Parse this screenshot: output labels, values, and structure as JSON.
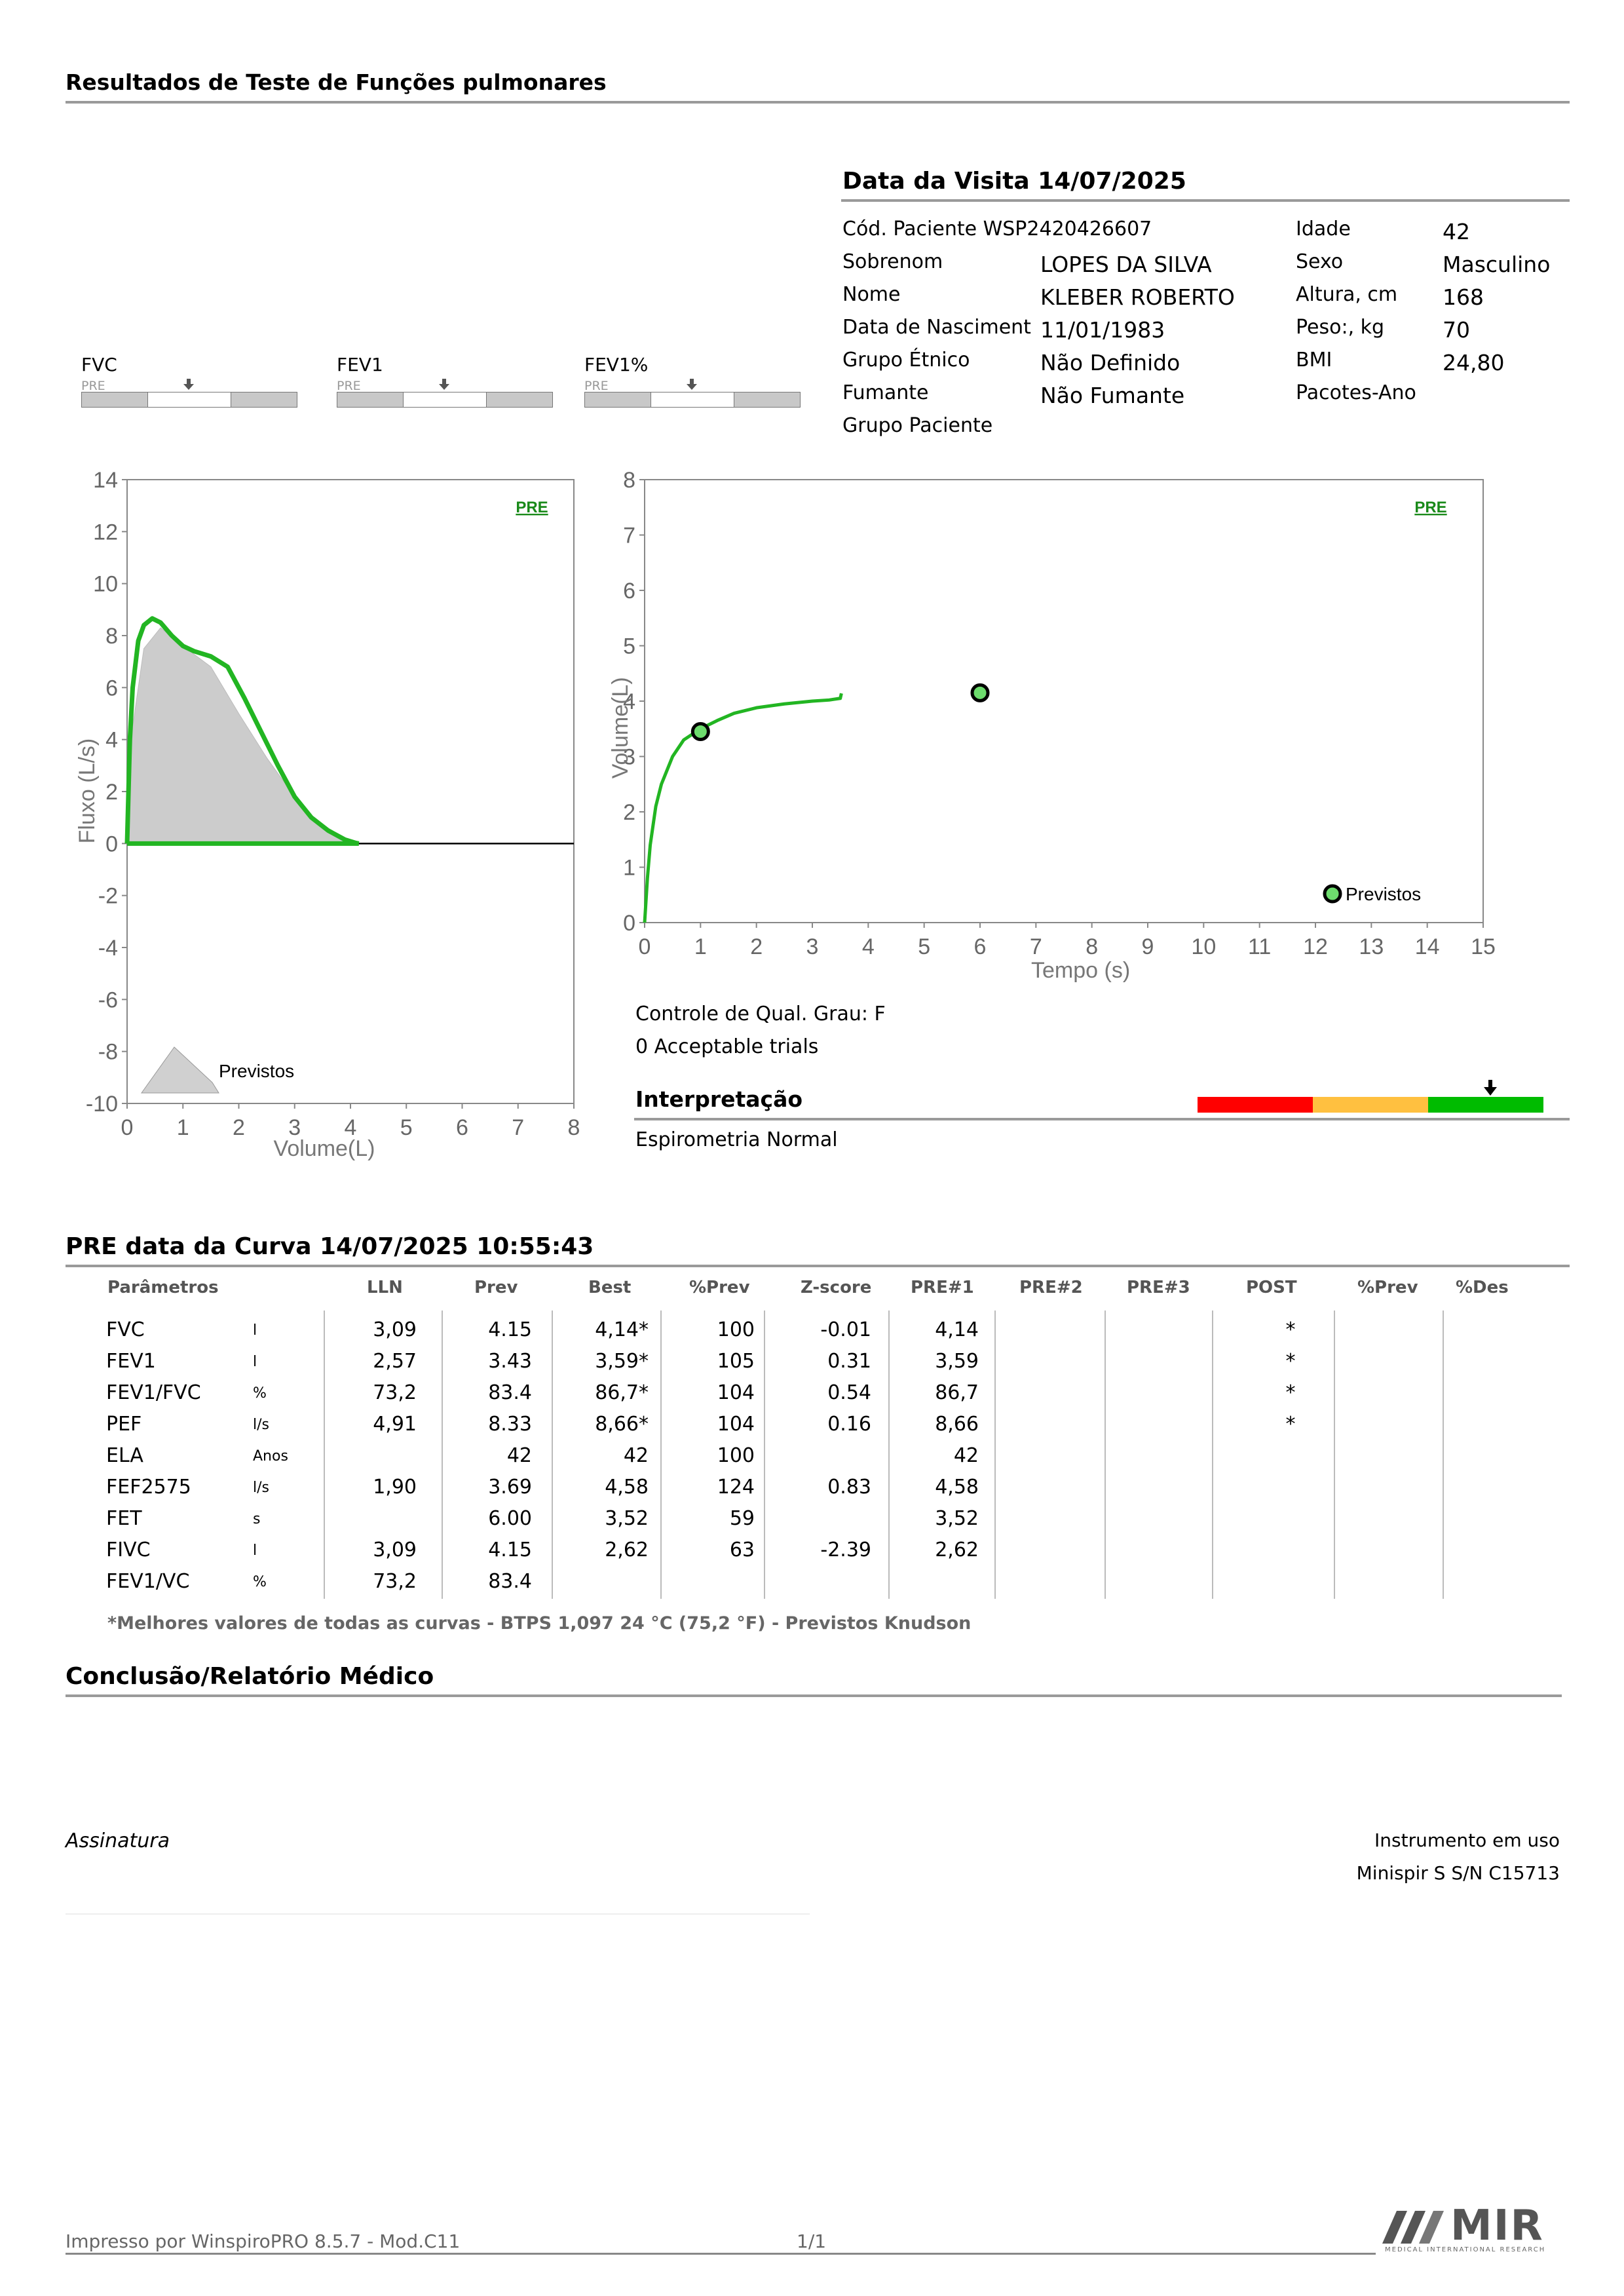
{
  "header": {
    "title": "Resultados de Teste de Funções pulmonares"
  },
  "visit": {
    "title": "Data da Visita 14/07/2025",
    "patient_code": "Cód. Paciente WSP2420426607",
    "fields_left": [
      {
        "label": "Sobrenom",
        "value": "LOPES DA SILVA"
      },
      {
        "label": "Nome",
        "value": "KLEBER ROBERTO"
      },
      {
        "label": "Data de Nasciment",
        "value": "11/01/1983"
      },
      {
        "label": "Grupo Étnico",
        "value": "Não Definido"
      },
      {
        "label": "Fumante",
        "value": "Não Fumante"
      },
      {
        "label": "Grupo Paciente",
        "value": ""
      }
    ],
    "fields_right": [
      {
        "label": "Idade",
        "value": "42"
      },
      {
        "label": "Sexo",
        "value": "Masculino"
      },
      {
        "label": "Altura, cm",
        "value": "168"
      },
      {
        "label": "Peso:, kg",
        "value": "70"
      },
      {
        "label": "BMI",
        "value": "24,80"
      },
      {
        "label": "Pacotes-Ano",
        "value": ""
      }
    ]
  },
  "indicators": [
    {
      "name": "FVC",
      "tag": "PRE"
    },
    {
      "name": "FEV1",
      "tag": "PRE"
    },
    {
      "name": "FEV1%",
      "tag": "PRE"
    }
  ],
  "flow_volume_chart": {
    "type": "area",
    "tag": "PRE",
    "ylabel": "Fluxo (L/s)",
    "xlabel": "Volume(L)",
    "ylim": [
      -10,
      14
    ],
    "xlim": [
      0,
      8
    ],
    "yticks": [
      "14",
      "12",
      "10",
      "8",
      "6",
      "4",
      "2",
      "0",
      "-2",
      "-4",
      "-6",
      "-8",
      "-10"
    ],
    "xticks": [
      "0",
      "1",
      "2",
      "3",
      "4",
      "5",
      "6",
      "7",
      "8"
    ],
    "legend": "Previstos",
    "predicted_curve": {
      "x": [
        0,
        0.1,
        0.3,
        0.6,
        1.0,
        1.5,
        2.0,
        2.5,
        3.0,
        3.5,
        4.0,
        4.15
      ],
      "y": [
        0,
        4.5,
        7.5,
        8.3,
        7.6,
        6.8,
        5.0,
        3.3,
        1.8,
        0.6,
        0.05,
        0
      ]
    },
    "measured_curve": {
      "x": [
        0,
        0.05,
        0.1,
        0.2,
        0.3,
        0.45,
        0.6,
        0.8,
        1.0,
        1.2,
        1.5,
        1.8,
        2.1,
        2.4,
        2.7,
        3.0,
        3.3,
        3.6,
        3.9,
        4.1,
        4.15
      ],
      "y": [
        0,
        4.0,
        6.0,
        7.8,
        8.4,
        8.66,
        8.5,
        8.0,
        7.6,
        7.4,
        7.2,
        6.8,
        5.6,
        4.3,
        3.0,
        1.8,
        1.0,
        0.5,
        0.15,
        0.02,
        0
      ]
    }
  },
  "volume_time_chart": {
    "type": "line",
    "tag": "PRE",
    "ylabel": "Volume(L)",
    "xlabel": "Tempo (s)",
    "ylim": [
      0,
      8
    ],
    "xlim": [
      0,
      15
    ],
    "yticks": [
      "8",
      "7",
      "6",
      "5",
      "4",
      "3",
      "2",
      "1",
      "0"
    ],
    "xticks": [
      "0",
      "1",
      "2",
      "3",
      "4",
      "5",
      "6",
      "7",
      "8",
      "9",
      "10",
      "11",
      "12",
      "13",
      "14",
      "15"
    ],
    "legend": "Previstos",
    "curve": {
      "x": [
        0,
        0.05,
        0.1,
        0.2,
        0.3,
        0.5,
        0.7,
        1.0,
        1.3,
        1.6,
        2.0,
        2.5,
        3.0,
        3.3,
        3.5,
        3.52
      ],
      "y": [
        0,
        0.8,
        1.4,
        2.1,
        2.5,
        3.0,
        3.3,
        3.5,
        3.65,
        3.78,
        3.88,
        3.95,
        4.0,
        4.02,
        4.05,
        4.14
      ]
    },
    "markers": [
      {
        "x": 1.0,
        "y": 3.45
      },
      {
        "x": 6.0,
        "y": 4.15
      }
    ]
  },
  "quality": {
    "grade": "Controle de Qual. Grau: F",
    "trials": "0 Acceptable trials",
    "interpretation_title": "Interpretação",
    "interpretation_text": "Espirometria Normal",
    "scale_colors": [
      "#ff0000",
      "#ffc040",
      "#00bb00"
    ]
  },
  "curve_section": {
    "title": "PRE data da Curva 14/07/2025   10:55:43"
  },
  "table": {
    "headers": [
      "Parâmetros",
      "LLN",
      "Prev",
      "Best",
      "%Prev",
      "Z-score",
      "PRE#1",
      "PRE#2",
      "PRE#3",
      "POST",
      "%Prev",
      "%Des"
    ],
    "rows": [
      {
        "p": "FVC",
        "u": "l",
        "lln": "3,09",
        "prev": "4.15",
        "best": "4,14*",
        "pp": "100",
        "z": "-0.01",
        "pre1": "4,14",
        "post": "*"
      },
      {
        "p": "FEV1",
        "u": "l",
        "lln": "2,57",
        "prev": "3.43",
        "best": "3,59*",
        "pp": "105",
        "z": "0.31",
        "pre1": "3,59",
        "post": "*"
      },
      {
        "p": "FEV1/FVC",
        "u": "%",
        "lln": "73,2",
        "prev": "83.4",
        "best": "86,7*",
        "pp": "104",
        "z": "0.54",
        "pre1": "86,7",
        "post": "*"
      },
      {
        "p": "PEF",
        "u": "l/s",
        "lln": "4,91",
        "prev": "8.33",
        "best": "8,66*",
        "pp": "104",
        "z": "0.16",
        "pre1": "8,66",
        "post": "*"
      },
      {
        "p": "ELA",
        "u": "Anos",
        "lln": "",
        "prev": "42",
        "best": "42",
        "pp": "100",
        "z": "",
        "pre1": "42",
        "post": ""
      },
      {
        "p": "FEF2575",
        "u": "l/s",
        "lln": "1,90",
        "prev": "3.69",
        "best": "4,58",
        "pp": "124",
        "z": "0.83",
        "pre1": "4,58",
        "post": ""
      },
      {
        "p": "FET",
        "u": "s",
        "lln": "",
        "prev": "6.00",
        "best": "3,52",
        "pp": "59",
        "z": "",
        "pre1": "3,52",
        "post": ""
      },
      {
        "p": "FIVC",
        "u": "l",
        "lln": "3,09",
        "prev": "4.15",
        "best": "2,62",
        "pp": "63",
        "z": "-2.39",
        "pre1": "2,62",
        "post": ""
      },
      {
        "p": "FEV1/VC",
        "u": "%",
        "lln": "73,2",
        "prev": "83.4",
        "best": "",
        "pp": "",
        "z": "",
        "pre1": "",
        "post": ""
      }
    ],
    "footnote": "*Melhores valores de todas as curvas - BTPS  1,097  24 °C  (75,2 °F) - Previstos Knudson"
  },
  "conclusion": {
    "title": "Conclusão/Relatório Médico"
  },
  "signature": {
    "label": "Assinatura"
  },
  "instrument": {
    "label": "Instrumento em uso",
    "value": "Minispir S S/N C15713"
  },
  "footer": {
    "printed": "Impresso por WinspiroPRO  8.5.7 - Mod.C11",
    "page": "1/1",
    "logo_text": "MIR",
    "logo_sub": "MEDICAL INTERNATIONAL RESEARCH"
  }
}
